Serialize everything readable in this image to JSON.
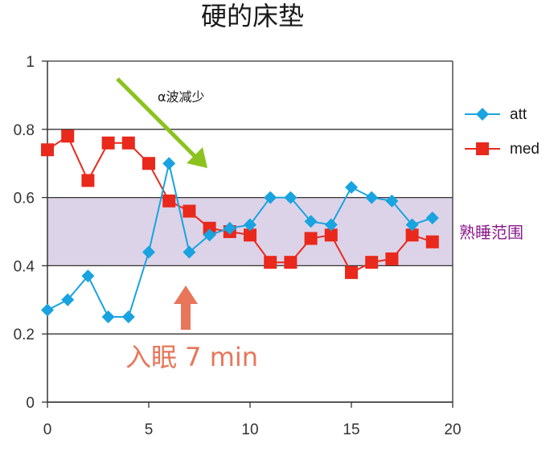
{
  "chart_data": {
    "type": "line",
    "title": "硬的床垫",
    "xlim": [
      0,
      20
    ],
    "ylim": [
      0,
      1
    ],
    "x_ticks": [
      "0",
      "5",
      "10",
      "15",
      "20"
    ],
    "y_ticks": [
      "0",
      "0.2",
      "0.4",
      "0.6",
      "0.8",
      "1"
    ],
    "grid": "horizontal",
    "legend_position": "right",
    "band": {
      "from": 0.4,
      "to": 0.6,
      "label": "熟睡范围",
      "color": "#ddd3e8",
      "label_color": "#8b1a8b"
    },
    "series": [
      {
        "name": "att",
        "marker": "diamond",
        "color": "#19a3e0",
        "x": [
          0,
          1,
          2,
          3,
          4,
          5,
          6,
          7,
          8,
          9,
          10,
          11,
          12,
          13,
          14,
          15,
          16,
          17,
          18,
          19
        ],
        "values": [
          0.27,
          0.3,
          0.37,
          0.25,
          0.25,
          0.44,
          0.7,
          0.44,
          0.49,
          0.51,
          0.52,
          0.6,
          0.6,
          0.53,
          0.52,
          0.63,
          0.6,
          0.59,
          0.52,
          0.54
        ]
      },
      {
        "name": "med",
        "marker": "square",
        "color": "#e8291c",
        "x": [
          0,
          1,
          2,
          3,
          4,
          5,
          6,
          7,
          8,
          9,
          10,
          11,
          12,
          13,
          14,
          15,
          16,
          17,
          18,
          19
        ],
        "values": [
          0.74,
          0.78,
          0.65,
          0.76,
          0.76,
          0.7,
          0.59,
          0.56,
          0.51,
          0.5,
          0.49,
          0.41,
          0.41,
          0.48,
          0.49,
          0.38,
          0.41,
          0.42,
          0.49,
          0.47
        ]
      }
    ],
    "annotations": {
      "alpha": {
        "text": "α波减少",
        "arrow_color": "#8cc21f"
      },
      "sleep": {
        "text": "入眠 7 min",
        "color": "#e8765a",
        "arrow_color": "#e8765a"
      }
    }
  }
}
